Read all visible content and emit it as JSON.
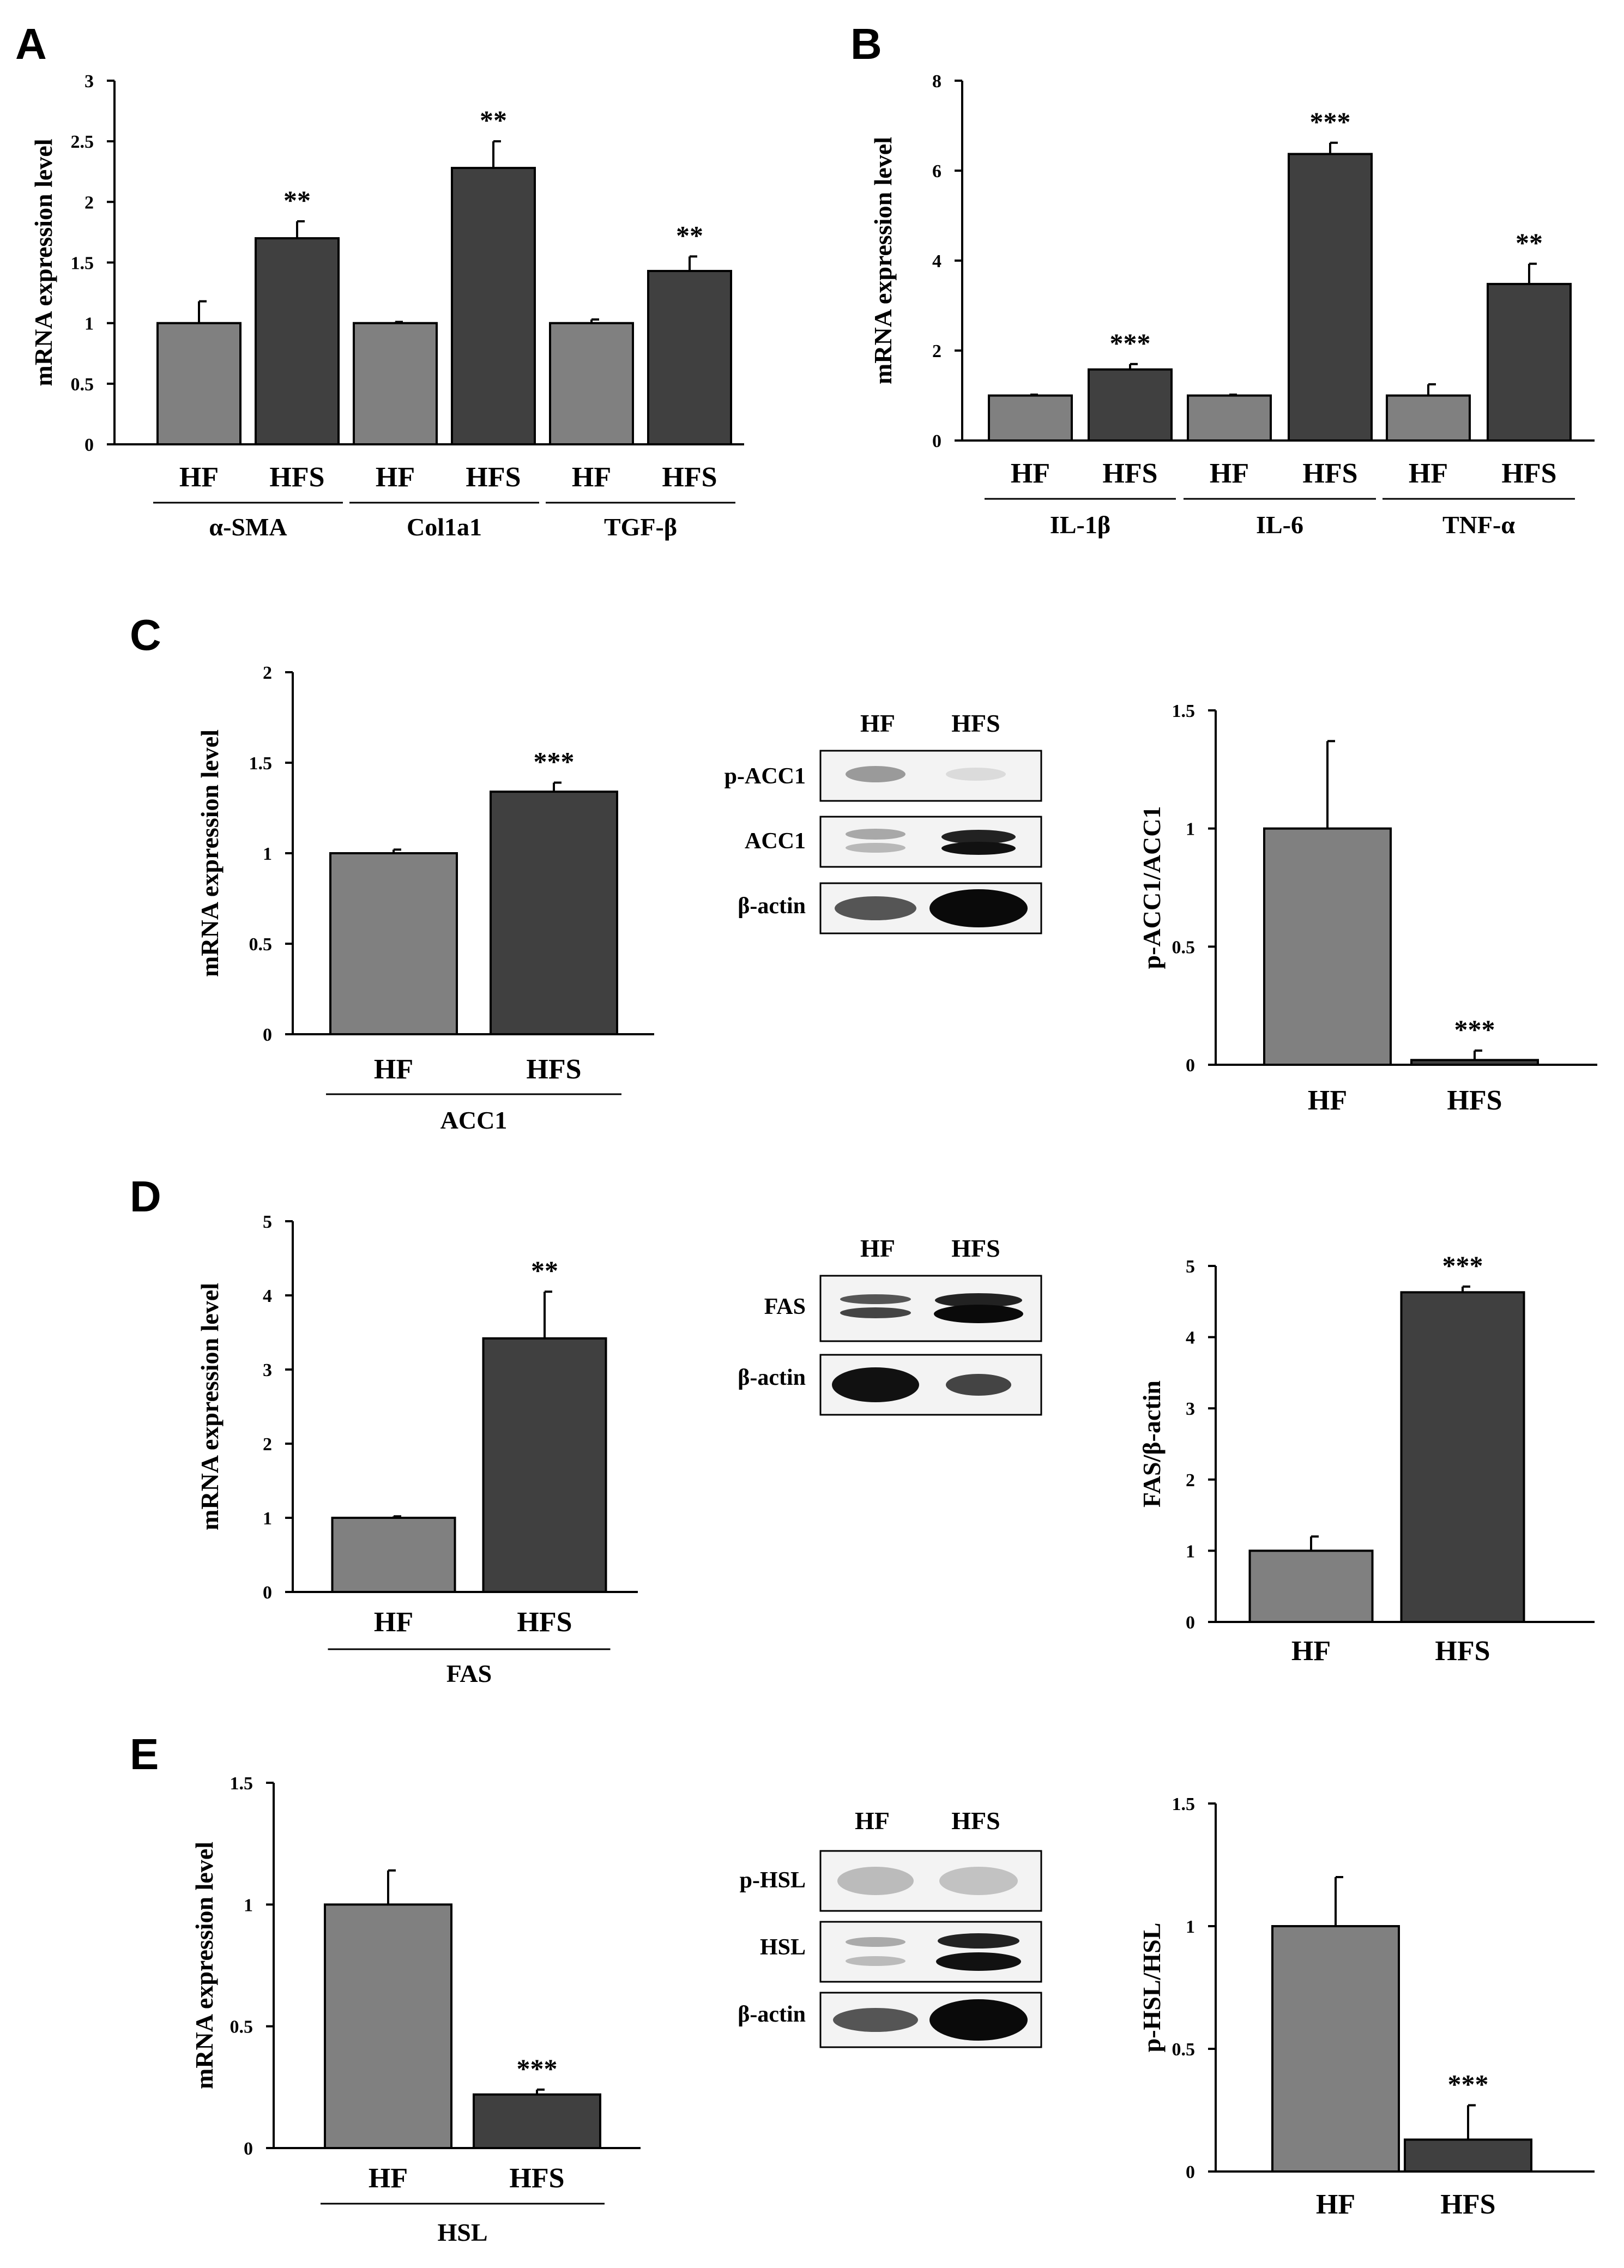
{
  "panels": {
    "A": {
      "label": "A"
    },
    "B": {
      "label": "B"
    },
    "C": {
      "label": "C"
    },
    "D": {
      "label": "D"
    },
    "E": {
      "label": "E"
    }
  },
  "blots": {
    "C": {
      "cols": [
        "HF",
        "HFS"
      ],
      "rows": [
        "p-ACC1",
        "ACC1",
        "β-actin"
      ]
    },
    "D": {
      "cols": [
        "HF",
        "HFS"
      ],
      "rows": [
        "FAS",
        "β-actin"
      ]
    },
    "E": {
      "cols": [
        "HF",
        "HFS"
      ],
      "rows": [
        "p-HSL",
        "HSL",
        "β-actin"
      ]
    }
  },
  "colors": {
    "hf": "#808080",
    "hfs": "#404040",
    "axis": "#000000",
    "error": "#000000"
  },
  "chart_data": [
    {
      "id": "A",
      "type": "bar",
      "ylabel": "mRNA expression level",
      "ylim": [
        0,
        3
      ],
      "yticks": [
        "0",
        "0.5",
        "1",
        "1.5",
        "2",
        "2.5",
        "3"
      ],
      "categories": [
        "HF",
        "HFS",
        "HF",
        "HFS",
        "HF",
        "HFS"
      ],
      "groups": [
        "α-SMA",
        "Col1a1",
        "TGF-β"
      ],
      "values": [
        1.0,
        1.7,
        1.0,
        2.28,
        1.0,
        1.43
      ],
      "errors": [
        0.18,
        0.14,
        0.01,
        0.22,
        0.03,
        0.12
      ],
      "significance": [
        "",
        "**",
        "",
        "**",
        "",
        "**"
      ]
    },
    {
      "id": "B",
      "type": "bar",
      "ylabel": "mRNA expression level",
      "ylim": [
        0,
        8
      ],
      "yticks": [
        "0",
        "2",
        "4",
        "6",
        "8"
      ],
      "categories": [
        "HF",
        "HFS",
        "HF",
        "HFS",
        "HF",
        "HFS"
      ],
      "groups": [
        "IL-1β",
        "IL-6",
        "TNF-α"
      ],
      "values": [
        1.0,
        1.58,
        1.0,
        6.37,
        1.0,
        3.48
      ],
      "errors": [
        0.02,
        0.12,
        0.02,
        0.25,
        0.25,
        0.45
      ],
      "significance": [
        "",
        "***",
        "",
        "***",
        "",
        "**"
      ]
    },
    {
      "id": "C1",
      "type": "bar",
      "ylabel": "mRNA expression level",
      "ylim": [
        0,
        2
      ],
      "yticks": [
        "0",
        "0.5",
        "1",
        "1.5",
        "2"
      ],
      "categories": [
        "HF",
        "HFS"
      ],
      "groups": [
        "ACC1"
      ],
      "values": [
        1.0,
        1.34
      ],
      "errors": [
        0.02,
        0.05
      ],
      "significance": [
        "",
        "***"
      ]
    },
    {
      "id": "C2",
      "type": "bar",
      "ylabel": "p-ACC1/ACC1",
      "ylim": [
        0,
        1.5
      ],
      "yticks": [
        "0",
        "0.5",
        "1",
        "1.5"
      ],
      "categories": [
        "HF",
        "HFS"
      ],
      "groups": [],
      "values": [
        1.0,
        0.02
      ],
      "errors": [
        0.37,
        0.04
      ],
      "significance": [
        "",
        "***"
      ]
    },
    {
      "id": "D1",
      "type": "bar",
      "ylabel": "mRNA expression level",
      "ylim": [
        0,
        5
      ],
      "yticks": [
        "0",
        "1",
        "2",
        "3",
        "4",
        "5"
      ],
      "categories": [
        "HF",
        "HFS"
      ],
      "groups": [
        "FAS"
      ],
      "values": [
        1.0,
        3.42
      ],
      "errors": [
        0.02,
        0.63
      ],
      "significance": [
        "",
        "**"
      ]
    },
    {
      "id": "D2",
      "type": "bar",
      "ylabel": "FAS/β-actin",
      "ylim": [
        0,
        5
      ],
      "yticks": [
        "0",
        "1",
        "2",
        "3",
        "4",
        "5"
      ],
      "categories": [
        "HF",
        "HFS"
      ],
      "groups": [],
      "values": [
        1.0,
        4.63
      ],
      "errors": [
        0.2,
        0.08
      ],
      "significance": [
        "",
        "***"
      ]
    },
    {
      "id": "E1",
      "type": "bar",
      "ylabel": "mRNA expression level",
      "ylim": [
        0,
        1.5
      ],
      "yticks": [
        "0",
        "0.5",
        "1",
        "1.5"
      ],
      "categories": [
        "HF",
        "HFS"
      ],
      "groups": [
        "HSL"
      ],
      "values": [
        1.0,
        0.22
      ],
      "errors": [
        0.14,
        0.02
      ],
      "significance": [
        "",
        "***"
      ]
    },
    {
      "id": "E2",
      "type": "bar",
      "ylabel": "p-HSL/HSL",
      "ylim": [
        0,
        1.5
      ],
      "yticks": [
        "0",
        "0.5",
        "1",
        "1.5"
      ],
      "categories": [
        "HF",
        "HFS"
      ],
      "groups": [],
      "values": [
        1.0,
        0.13
      ],
      "errors": [
        0.2,
        0.14
      ],
      "significance": [
        "",
        "***"
      ]
    }
  ]
}
